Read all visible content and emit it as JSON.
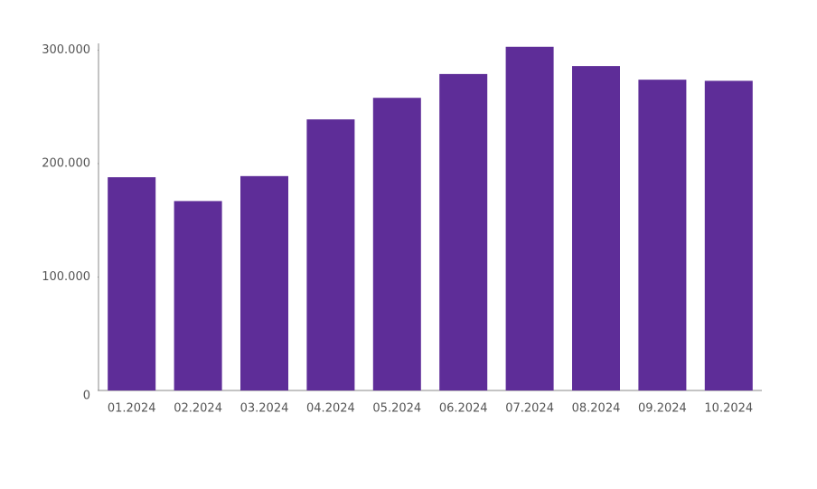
{
  "chart_data": {
    "type": "bar",
    "categories": [
      "01.2024",
      "02.2024",
      "03.2024",
      "04.2024",
      "05.2024",
      "06.2024",
      "07.2024",
      "08.2024",
      "09.2024",
      "10.2024"
    ],
    "values": [
      188000,
      167000,
      189000,
      239000,
      258000,
      279000,
      303000,
      286000,
      274000,
      273000
    ],
    "color": "#5e2d98",
    "ylim": [
      0,
      306000
    ],
    "yticks": [
      0,
      {
        "value": 100000,
        "label": "100.000"
      },
      {
        "value": 200000,
        "label": "200.000"
      },
      {
        "value": 300000,
        "label": "300.000"
      }
    ],
    "grid": false
  }
}
